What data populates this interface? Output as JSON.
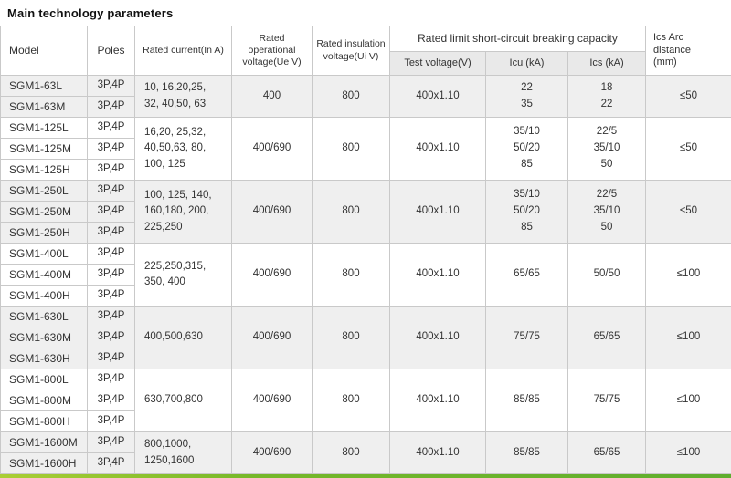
{
  "title": "Main technology parameters",
  "table": {
    "headers": {
      "model": "Model",
      "poles": "Poles",
      "rated_current": "Rated current(In A)",
      "operational_voltage": "Rated operational\nvoltage(Ue V)",
      "insulation_voltage": "Rated insulation\nvoltage(Ui V)",
      "breaking_capacity": "Rated limit short-circuit breaking capacity",
      "test_voltage": "Test voltage(V)",
      "icu": "Icu (kA)",
      "ics": "Ics (kA)",
      "arc_distance": "Ics Arc\ndistance\n(mm)"
    },
    "groups": [
      {
        "models": [
          "SGM1-63L",
          "SGM1-63M"
        ],
        "poles": "3P,4P",
        "rated_current": "10, 16,20,25,\n32, 40,50, 63",
        "operational_voltage": "400",
        "insulation_voltage": "800",
        "test_voltage": "400x1.10",
        "icu": [
          "22",
          "35"
        ],
        "ics": [
          "18",
          "22"
        ],
        "arc_distance": "≤50",
        "shaded": true
      },
      {
        "models": [
          "SGM1-125L",
          "SGM1-125M",
          "SGM1-125H"
        ],
        "poles": "3P,4P",
        "rated_current": "16,20, 25,32,\n40,50,63, 80,\n100, 125",
        "operational_voltage": "400/690",
        "insulation_voltage": "800",
        "test_voltage": "400x1.10",
        "icu": [
          "35/10",
          "50/20",
          "85"
        ],
        "ics": [
          "22/5",
          "35/10",
          "50"
        ],
        "arc_distance": "≤50",
        "shaded": false
      },
      {
        "models": [
          "SGM1-250L",
          "SGM1-250M",
          "SGM1-250H"
        ],
        "poles": "3P,4P",
        "rated_current": "100, 125, 140,\n160,180, 200,\n225,250",
        "operational_voltage": "400/690",
        "insulation_voltage": "800",
        "test_voltage": "400x1.10",
        "icu": [
          "35/10",
          "50/20",
          "85"
        ],
        "ics": [
          "22/5",
          "35/10",
          "50"
        ],
        "arc_distance": "≤50",
        "shaded": true
      },
      {
        "models": [
          "SGM1-400L",
          "SGM1-400M",
          "SGM1-400H"
        ],
        "poles": "3P,4P",
        "rated_current": "225,250,315,\n350, 400",
        "operational_voltage": "400/690",
        "insulation_voltage": "800",
        "test_voltage": "400x1.10",
        "icu": [
          "65/65"
        ],
        "ics": [
          "50/50"
        ],
        "arc_distance": "≤100",
        "shaded": false
      },
      {
        "models": [
          "SGM1-630L",
          "SGM1-630M",
          "SGM1-630H"
        ],
        "poles": "3P,4P",
        "rated_current": "400,500,630",
        "operational_voltage": "400/690",
        "insulation_voltage": "800",
        "test_voltage": "400x1.10",
        "icu": [
          "75/75"
        ],
        "ics": [
          "65/65"
        ],
        "arc_distance": "≤100",
        "shaded": true
      },
      {
        "models": [
          "SGM1-800L",
          "SGM1-800M",
          "SGM1-800H"
        ],
        "poles": "3P,4P",
        "rated_current": "630,700,800",
        "operational_voltage": "400/690",
        "insulation_voltage": "800",
        "test_voltage": "400x1.10",
        "icu": [
          "85/85"
        ],
        "ics": [
          "75/75"
        ],
        "arc_distance": "≤100",
        "shaded": false
      },
      {
        "models": [
          "SGM1-1600M",
          "SGM1-1600H"
        ],
        "poles": "3P,4P",
        "rated_current": "800,1000,\n1250,1600",
        "operational_voltage": "400/690",
        "insulation_voltage": "800",
        "test_voltage": "400x1.10",
        "icu": [
          "85/85"
        ],
        "ics": [
          "65/65"
        ],
        "arc_distance": "≤100",
        "shaded": true
      }
    ]
  }
}
